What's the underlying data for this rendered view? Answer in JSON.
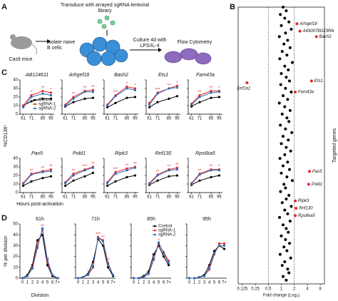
{
  "figure": {
    "panel_labels": [
      "A",
      "B",
      "C",
      "D"
    ],
    "panel_c_ylabel": "%CD138⁺",
    "panel_c_xlabel": "Hours post-activation",
    "panel_d_ylabel": "% per division",
    "panel_d_xlabel": "Division"
  },
  "diagram": {
    "step1": "Transduce with arrayed sgRNA lentiviral library",
    "mouse": "Cas9 mice",
    "step2": "Isolate naive B cells",
    "step3": "Culture 4d with LPS/IL-4",
    "step4": "Flow Cytometry"
  },
  "chart_data": [
    {
      "type": "scatter",
      "xlabel": "Fold change (Log₂)",
      "ylabel": "Targeted genes",
      "xscale": "log",
      "xlim": [
        0.1,
        10
      ],
      "ylim": [
        150,
        0
      ],
      "xticks": [
        0.125,
        0.25,
        0.5,
        1,
        2,
        4,
        8
      ],
      "vlines": [
        0.5,
        2
      ],
      "series": [
        {
          "color": "#000000",
          "x": [
            1.1,
            1.3,
            0.95,
            1.2,
            1.5,
            1.0,
            1.7,
            1.25,
            0.9,
            1.4,
            1.15,
            1.6,
            1.05,
            1.35,
            0.92,
            1.8,
            1.2,
            1.45,
            1.0,
            1.3,
            1.55,
            0.97,
            1.25,
            1.7,
            1.1,
            1.4,
            0.9,
            1.2,
            1.6,
            1.05,
            1.35,
            1.5,
            0.95,
            1.25,
            1.75,
            1.1,
            1.45,
            1.0,
            1.3,
            1.65,
            1.2,
            0.93,
            1.4,
            1.1,
            1.55,
            1.0,
            1.35,
            1.8,
            1.15,
            1.25,
            0.96,
            1.5,
            1.3,
            1.05,
            1.7,
            1.2,
            1.4,
            0.91,
            1.6,
            1.1,
            1.3,
            1.45,
            1.0,
            1.25,
            1.55,
            1.15,
            1.35,
            0.94,
            1.65,
            1.2,
            1.05,
            1.4,
            1.5,
            1.1,
            1.3
          ],
          "y": [
            0,
            2,
            4,
            6,
            8,
            10,
            12,
            14,
            16,
            18,
            20,
            22,
            24,
            26,
            28,
            30,
            32,
            34,
            36,
            38,
            40,
            42,
            44,
            46,
            48,
            50,
            52,
            54,
            56,
            58,
            60,
            62,
            64,
            66,
            68,
            70,
            72,
            74,
            76,
            78,
            80,
            82,
            84,
            86,
            88,
            90,
            92,
            94,
            96,
            98,
            100,
            102,
            104,
            106,
            108,
            110,
            112,
            114,
            116,
            118,
            120,
            122,
            124,
            126,
            128,
            130,
            132,
            134,
            136,
            138,
            140,
            142,
            144,
            146,
            148
          ]
        },
        {
          "color": "#e8262a",
          "labels": [
            "Arhgef18",
            "A430078G23Rik",
            "Bach2",
            "Eef1a1",
            "Ets1",
            "Fam43a",
            "Pax5",
            "Pold1",
            "Ripk3",
            "Rnf130",
            "Rps6ka5"
          ],
          "x": [
            2.3,
            2.7,
            6.5,
            0.16,
            5.0,
            2.1,
            4.5,
            4.3,
            2.1,
            2.2,
            2.1
          ],
          "y": [
            9,
            13,
            16,
            41,
            40,
            46,
            89,
            96,
            105,
            109,
            113
          ]
        }
      ]
    },
    {
      "type": "line",
      "title": "AB124611",
      "x": [
        61,
        71,
        85,
        95
      ],
      "xlim": [
        57,
        99
      ],
      "xticks": [
        61,
        71,
        85,
        95
      ],
      "ylim": [
        0,
        40
      ],
      "yticks": [
        0,
        10,
        20,
        30,
        40
      ],
      "legend": "lower-right",
      "series": [
        {
          "name": "Control",
          "color": "#000000",
          "values": [
            10,
            15,
            18,
            18
          ]
        },
        {
          "name": "sgRNA-1",
          "color": "#e8262a",
          "values": [
            10,
            22,
            27,
            25
          ],
          "sig": [
            null,
            "*",
            "**",
            "*"
          ]
        },
        {
          "name": "sgRNA-2",
          "color": "#2f6db5",
          "values": [
            8,
            20,
            24,
            22
          ]
        }
      ]
    },
    {
      "type": "line",
      "title": "Arhgef18",
      "x": [
        61,
        71,
        85,
        95
      ],
      "xlim": [
        57,
        99
      ],
      "xticks": [
        61,
        71,
        85,
        95
      ],
      "ylim": [
        0,
        40
      ],
      "yticks": [
        0,
        10,
        20,
        30,
        40
      ],
      "series": [
        {
          "color": "#000000",
          "values": [
            9,
            14,
            18,
            19
          ]
        },
        {
          "color": "#e8262a",
          "values": [
            11,
            20,
            27,
            28
          ],
          "sig": [
            null,
            "**",
            "**",
            "**"
          ]
        },
        {
          "color": "#2f6db5",
          "values": [
            10,
            18,
            26,
            26
          ]
        }
      ]
    },
    {
      "type": "line",
      "title": "Bach2",
      "x": [
        61,
        71,
        85,
        95
      ],
      "xlim": [
        57,
        99
      ],
      "xticks": [
        61,
        71,
        85,
        95
      ],
      "ylim": [
        0,
        40
      ],
      "yticks": [
        0,
        10,
        20,
        30,
        40
      ],
      "series": [
        {
          "color": "#000000",
          "values": [
            8,
            13,
            19,
            20
          ]
        },
        {
          "color": "#e8262a",
          "values": [
            11,
            22,
            32,
            30
          ],
          "sig": [
            null,
            "***",
            "*",
            "*"
          ]
        },
        {
          "color": "#2f6db5",
          "values": [
            10,
            21,
            30,
            28
          ]
        }
      ]
    },
    {
      "type": "line",
      "title": "Ets1",
      "x": [
        61,
        71,
        85,
        95
      ],
      "xlim": [
        57,
        99
      ],
      "xticks": [
        61,
        71,
        85,
        95
      ],
      "ylim": [
        0,
        40
      ],
      "yticks": [
        0,
        10,
        20,
        30,
        40
      ],
      "series": [
        {
          "color": "#000000",
          "values": [
            8,
            14,
            18,
            21
          ]
        },
        {
          "color": "#e8262a",
          "values": [
            13,
            25,
            30,
            33
          ],
          "sig": [
            null,
            "***",
            "**",
            "*"
          ]
        },
        {
          "color": "#2f6db5",
          "values": [
            11,
            24,
            30,
            31
          ]
        }
      ]
    },
    {
      "type": "line",
      "title": "Fam43a",
      "x": [
        61,
        71,
        85,
        95
      ],
      "xlim": [
        57,
        99
      ],
      "xticks": [
        61,
        71,
        85,
        95
      ],
      "ylim": [
        0,
        40
      ],
      "yticks": [
        0,
        10,
        20,
        30,
        40
      ],
      "series": [
        {
          "color": "#000000",
          "values": [
            9,
            14,
            19,
            20
          ]
        },
        {
          "color": "#e8262a",
          "values": [
            12,
            22,
            27,
            27
          ],
          "sig": [
            null,
            "**",
            "**",
            "*"
          ]
        },
        {
          "color": "#2f6db5",
          "values": [
            11,
            20,
            25,
            26
          ]
        }
      ]
    },
    {
      "type": "line",
      "title": "Pax5",
      "x": [
        61,
        71,
        85,
        95
      ],
      "xlim": [
        57,
        99
      ],
      "xticks": [
        61,
        71,
        85,
        95
      ],
      "ylim": [
        0,
        40
      ],
      "yticks": [
        0,
        10,
        20,
        30,
        40
      ],
      "series": [
        {
          "color": "#000000",
          "values": [
            8,
            13,
            17,
            19
          ]
        },
        {
          "color": "#e8262a",
          "values": [
            11,
            22,
            25,
            27
          ],
          "sig": [
            null,
            "**",
            "**",
            "**"
          ]
        },
        {
          "color": "#2f6db5",
          "values": [
            10,
            21,
            24,
            25
          ]
        }
      ]
    },
    {
      "type": "line",
      "title": "Pold1",
      "x": [
        61,
        71,
        85,
        95
      ],
      "xlim": [
        57,
        99
      ],
      "xticks": [
        61,
        71,
        85,
        95
      ],
      "ylim": [
        0,
        40
      ],
      "yticks": [
        0,
        10,
        20,
        30,
        40
      ],
      "series": [
        {
          "color": "#000000",
          "values": [
            8,
            14,
            19,
            23
          ]
        },
        {
          "color": "#e8262a",
          "values": [
            12,
            22,
            27,
            30
          ],
          "sig": [
            null,
            "**",
            "***",
            "**"
          ]
        },
        {
          "color": "#2f6db5",
          "values": [
            11,
            20,
            26,
            29
          ]
        }
      ]
    },
    {
      "type": "line",
      "title": "Ripk3",
      "x": [
        61,
        71,
        85,
        95
      ],
      "xlim": [
        57,
        99
      ],
      "xticks": [
        61,
        71,
        85,
        95
      ],
      "ylim": [
        0,
        40
      ],
      "yticks": [
        0,
        10,
        20,
        30,
        40
      ],
      "series": [
        {
          "color": "#000000",
          "values": [
            8,
            13,
            18,
            20
          ]
        },
        {
          "color": "#e8262a",
          "values": [
            12,
            24,
            28,
            30
          ],
          "sig": [
            null,
            "***",
            "**",
            "**"
          ]
        },
        {
          "color": "#2f6db5",
          "values": [
            11,
            22,
            26,
            29
          ]
        }
      ]
    },
    {
      "type": "line",
      "title": "Rnf130",
      "x": [
        61,
        71,
        85,
        95
      ],
      "xlim": [
        57,
        99
      ],
      "xticks": [
        61,
        71,
        85,
        95
      ],
      "ylim": [
        0,
        40
      ],
      "yticks": [
        0,
        10,
        20,
        30,
        40
      ],
      "series": [
        {
          "color": "#000000",
          "values": [
            9,
            14,
            19,
            20
          ]
        },
        {
          "color": "#e8262a",
          "values": [
            11,
            21,
            27,
            29
          ],
          "sig": [
            null,
            "**",
            "**",
            "**"
          ]
        },
        {
          "color": "#2f6db5",
          "values": [
            10,
            20,
            26,
            27
          ]
        }
      ]
    },
    {
      "type": "line",
      "title": "Rps6ka5",
      "x": [
        61,
        71,
        85,
        95
      ],
      "xlim": [
        57,
        99
      ],
      "xticks": [
        61,
        71,
        85,
        95
      ],
      "ylim": [
        0,
        40
      ],
      "yticks": [
        0,
        10,
        20,
        30,
        40
      ],
      "series": [
        {
          "color": "#000000",
          "values": [
            9,
            14,
            18,
            20
          ]
        },
        {
          "color": "#e8262a",
          "values": [
            11,
            22,
            27,
            27
          ],
          "sig": [
            null,
            "**",
            "**",
            "*"
          ]
        },
        {
          "color": "#2f6db5",
          "values": [
            10,
            21,
            26,
            26
          ]
        }
      ]
    },
    {
      "type": "line",
      "title": "61h",
      "categories": [
        "0",
        "1",
        "2",
        "3",
        "4",
        "5",
        "6",
        "7+"
      ],
      "ylim": [
        0,
        50
      ],
      "yticks": [
        0,
        10,
        20,
        30,
        40,
        50
      ],
      "series": [
        {
          "color": "#000000",
          "values": [
            0,
            3,
            12,
            35,
            40,
            12,
            2,
            0
          ]
        },
        {
          "color": "#e8262a",
          "values": [
            0,
            2,
            10,
            30,
            45,
            15,
            3,
            0
          ],
          "sig": [
            null,
            null,
            "*",
            "**",
            "**",
            "**",
            null,
            null
          ]
        },
        {
          "color": "#2f6db5",
          "values": [
            0,
            2,
            9,
            28,
            46,
            17,
            3,
            0
          ]
        }
      ]
    },
    {
      "type": "line",
      "title": "71h",
      "categories": [
        "0",
        "1",
        "2",
        "3",
        "4",
        "5",
        "6",
        "7+"
      ],
      "ylim": [
        0,
        50
      ],
      "yticks": [
        0,
        10,
        20,
        30,
        40,
        50
      ],
      "series": [
        {
          "color": "#000000",
          "values": [
            0,
            1,
            4,
            15,
            36,
            30,
            10,
            2
          ]
        },
        {
          "color": "#e8262a",
          "values": [
            0,
            1,
            3,
            10,
            38,
            35,
            14,
            3
          ],
          "sig": [
            null,
            null,
            "*",
            "**",
            "***",
            "**",
            "**",
            null
          ]
        },
        {
          "color": "#2f6db5",
          "values": [
            0,
            1,
            3,
            11,
            37,
            34,
            13,
            3
          ]
        }
      ]
    },
    {
      "type": "line",
      "title": "85h",
      "categories": [
        "0",
        "1",
        "2",
        "3",
        "4",
        "5",
        "6",
        "7+"
      ],
      "ylim": [
        0,
        50
      ],
      "yticks": [
        0,
        10,
        20,
        30,
        40,
        50
      ],
      "legend": "upper-right",
      "series": [
        {
          "name": "Control",
          "color": "#000000",
          "values": [
            0,
            0,
            2,
            6,
            22,
            30,
            20,
            12
          ]
        },
        {
          "name": "sgRNA-1",
          "color": "#e8262a",
          "values": [
            0,
            0,
            1,
            4,
            17,
            32,
            24,
            16
          ],
          "sig": [
            null,
            null,
            null,
            "*",
            "**",
            "*",
            null,
            null
          ]
        },
        {
          "name": "sgRNA-2",
          "color": "#2f6db5",
          "values": [
            0,
            0,
            1,
            4,
            18,
            33,
            23,
            14
          ]
        }
      ]
    },
    {
      "type": "line",
      "title": "95h",
      "categories": [
        "0",
        "1",
        "2",
        "3",
        "4",
        "5",
        "6",
        "7+"
      ],
      "ylim": [
        0,
        50
      ],
      "yticks": [
        0,
        10,
        20,
        30,
        40,
        50
      ],
      "series": [
        {
          "color": "#000000",
          "values": [
            0,
            0,
            1,
            3,
            12,
            25,
            30,
            27
          ]
        },
        {
          "color": "#e8262a",
          "values": [
            0,
            0,
            1,
            2,
            8,
            22,
            32,
            32
          ],
          "sig": [
            null,
            null,
            null,
            null,
            "**",
            "*",
            null,
            null
          ]
        },
        {
          "color": "#2f6db5",
          "values": [
            0,
            0,
            1,
            2,
            9,
            23,
            30,
            30
          ]
        }
      ]
    }
  ]
}
